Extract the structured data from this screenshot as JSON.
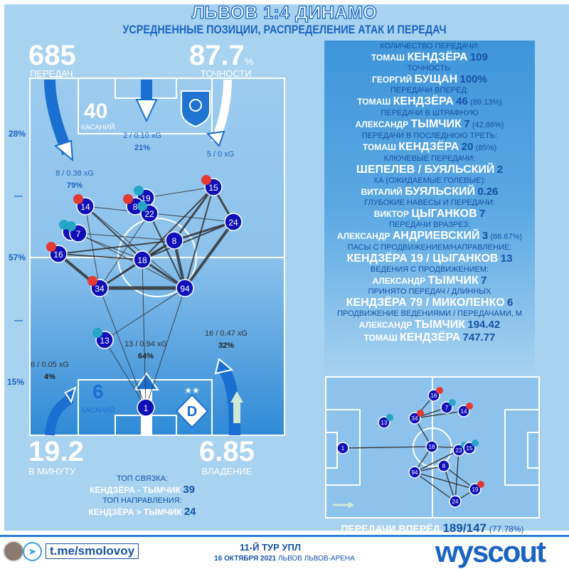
{
  "colors": {
    "background": "#a7d2f0",
    "accent": "#1a64c0",
    "node": "#1010b8",
    "badge_red": "#e53935",
    "badge_teal": "#26a6c9"
  },
  "header": {
    "title": "ЛЬВОВ 1:4 ДИНАМО",
    "subtitle": "УСРЕДНЕННЫЕ ПОЗИЦИИ, РАСПРЕДЕЛЕНИЕ АТАК И ПЕРЕДАЧ"
  },
  "stats": {
    "passes": "685",
    "passes_label": "ПЕРЕДАЧ",
    "accuracy": "87.7",
    "accuracy_unit": "%",
    "accuracy_label": "ТОЧНОСТИ",
    "per_minute": "19.2",
    "per_minute_label": "В МИНУТУ",
    "possession": "6.85",
    "possession_label": "ВЛАДЕНИЕ"
  },
  "pitch": {
    "opp_touches": "40",
    "opp_touches_label": "КАСАНИЙ",
    "own_touches": "6",
    "own_touches_label": "КАСАНИЙ",
    "side_labels": [
      "28%",
      "—",
      "57%",
      "—",
      "15%"
    ],
    "attack_labels": [
      {
        "text": "8 / 0.38 xG",
        "pct": "79%"
      },
      {
        "text": "2 / 0.10 xG",
        "pct": "21%"
      },
      {
        "text": "5 / 0 xG",
        "pct": ""
      },
      {
        "text": "6 / 0.05 xG",
        "pct": "4%"
      },
      {
        "text": "13 / 0.94 xG",
        "pct": "64%"
      },
      {
        "text": "16 / 0.47 xG",
        "pct": "32%"
      }
    ],
    "players": [
      "14",
      "19",
      "8",
      "22",
      "15",
      "24",
      "2",
      "7",
      "8",
      "16",
      "18",
      "34",
      "94",
      "13",
      "1"
    ]
  },
  "top_links": {
    "pair_label": "ТОП СВЯЗКА:",
    "pair": "КЕНДЗЁРА - ТЫМЧИК",
    "pair_value": "39",
    "dir_label": "ТОП НАПРАВЛЕНИЯ:",
    "dir": "КЕНДЗЁРА > ТЫМЧИК",
    "dir_value": "24"
  },
  "panel": [
    {
      "label": "КОЛИЧЕСТВО ПЕРЕДАЧИ:",
      "first": "ТОМАШ",
      "last": "КЕНДЗЁРА",
      "value": "109",
      "extra": ""
    },
    {
      "label": "ТОЧНОСТЬ:",
      "first": "ГЕОРГИЙ",
      "last": "БУЩАН",
      "value": "100%",
      "extra": ""
    },
    {
      "label": "ПЕРЕДАЧИ ВПЕРЁД:",
      "first": "ТОМАШ",
      "last": "КЕНДЗЁРА",
      "value": "46",
      "extra": "(89.13%)"
    },
    {
      "label": "ПЕРЕДАЧИ В ШТРАФНУЮ",
      "first": "АЛЕКСАНДР",
      "last": "ТЫМЧИК",
      "value": "7",
      "extra": "(42.86%)"
    },
    {
      "label": "ПЕРЕДАЧИ В ПОСЛЕДНЮЮ ТРЕТЬ:",
      "first": "ТОМАШ",
      "last": "КЕНДЗЁРА",
      "value": "20",
      "extra": "(85%)"
    },
    {
      "label": "КЛЮЧЕВЫЕ ПЕРЕДАЧИ:",
      "first": "",
      "last": "ШЕПЕЛЕВ / БУЯЛЬСКИЙ",
      "value": "2",
      "extra": ""
    },
    {
      "label": "ХА (ОЖИДАЕМЫЕ ГОЛЕВЫЕ):",
      "first": "ВИТАЛИЙ",
      "last": "БУЯЛЬСКИЙ",
      "value": "0.26",
      "extra": ""
    },
    {
      "label": "ГЛУБОКИЕ НАВЕСЫ И ПЕРЕДАЧИ:",
      "first": "ВИКТОР",
      "last": "ЦЫГАНКОВ",
      "value": "7",
      "extra": ""
    },
    {
      "label": "ПЕРЕДАЧИ ВРАЗРЕЗ:",
      "first": "АЛЕКСАНДР",
      "last": "АНДРИЕВСКИЙ",
      "value": "3",
      "extra": "(66.67%)"
    },
    {
      "label": "ПАСЫ С ПРОДВИЖЕНИЕМ/НАПРАВЛЕНИЕ:",
      "first": "",
      "last": "КЕНДЗЁРА 19 / ЦЫГАНКОВ",
      "value": "13",
      "extra": ""
    },
    {
      "label": "ВЕДЕНИЯ С ПРОДВИЖЕНИЕМ:",
      "first": "АЛЕКСАНДР",
      "last": "ТЫМЧИК",
      "value": "7",
      "extra": ""
    },
    {
      "label": "ПРИНЯТО ПЕРЕДАЧ / ДЛИННЫХ",
      "first": "",
      "last": "КЕНДЗЁРА 79 / МИКОЛЕНКО",
      "value": "6",
      "extra": ""
    },
    {
      "label": "ПРОДВИЖЕНИЕ ВЕДЕНИЯМИ / ПЕРЕДАЧАМИ, М",
      "first": "АЛЕКСАНДР",
      "last": "ТЫМЧИК",
      "value": "194.42",
      "extra": ""
    },
    {
      "label": "",
      "first": "ТОМАШ",
      "last": "КЕНДЗЁРА",
      "value": "747.77",
      "extra": ""
    }
  ],
  "mini": {
    "label": "ПЕРЕДАЧИ ВПЕРЁД",
    "value": "189/147",
    "pct": "(77.78%)",
    "players": [
      "1",
      "13",
      "34",
      "16",
      "7",
      "14",
      "18",
      "23",
      "15",
      "8",
      "94",
      "19",
      "24"
    ]
  },
  "footer": {
    "link": "t.me/smolovoy",
    "round": "11-Й ТУР УПЛ",
    "date": "16 ОКТЯБРЯ 2021",
    "venue": "ЛЬВОВ ЛЬВОВ-АРЕНА",
    "brand": "wyscout"
  }
}
